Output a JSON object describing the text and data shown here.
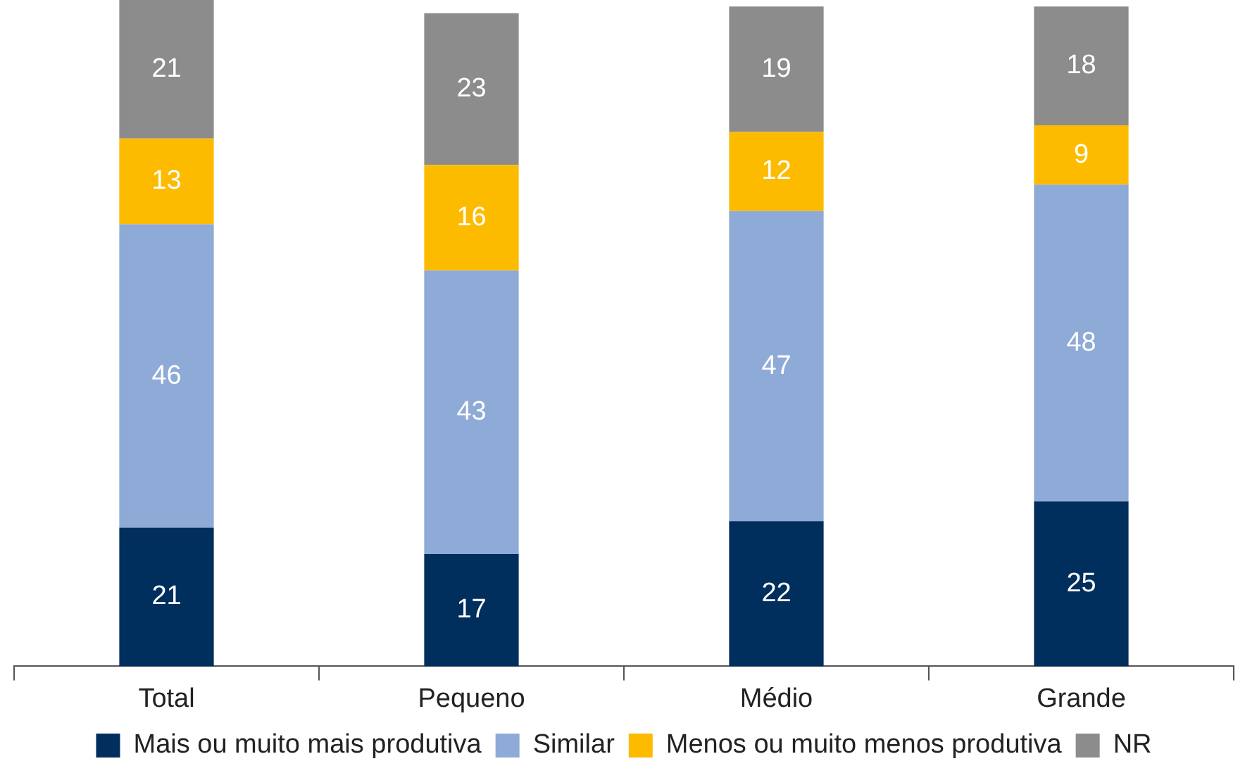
{
  "chart_data": {
    "type": "bar",
    "stacked": true,
    "categories": [
      "Total",
      "Pequeno",
      "Médio",
      "Grande"
    ],
    "series": [
      {
        "name": "Mais ou muito mais produtiva",
        "color": "#002e5d",
        "values": [
          21,
          17,
          22,
          25
        ]
      },
      {
        "name": "Similar",
        "color": "#8eaad6",
        "values": [
          46,
          43,
          47,
          48
        ]
      },
      {
        "name": "Menos ou muito menos produtiva",
        "color": "#fdbb00",
        "values": [
          13,
          16,
          12,
          9
        ]
      },
      {
        "name": "NR",
        "color": "#8c8c8c",
        "values": [
          21,
          23,
          19,
          18
        ]
      }
    ],
    "data_labels": true,
    "grid": false,
    "legend": "bottom"
  }
}
